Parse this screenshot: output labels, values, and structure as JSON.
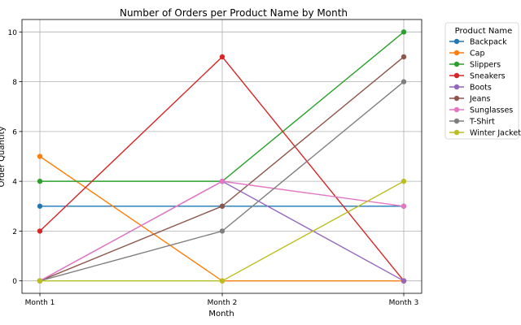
{
  "chart_data": {
    "type": "line",
    "title": "Number of Orders per Product Name by Month",
    "xlabel": "Month",
    "ylabel": "Order Quantity",
    "categories": [
      "Month 1",
      "Month 2",
      "Month 3"
    ],
    "ylim": [
      -0.5,
      10.5
    ],
    "yticks": [
      0,
      2,
      4,
      6,
      8,
      10
    ],
    "grid": true,
    "legend": {
      "title": "Product Name",
      "placement": "outside-right"
    },
    "series": [
      {
        "name": "Backpack",
        "color": "#1f77b4",
        "values": [
          3,
          3,
          3
        ]
      },
      {
        "name": "Cap",
        "color": "#ff7f0e",
        "values": [
          5,
          0,
          0
        ]
      },
      {
        "name": "Slippers",
        "color": "#2ca02c",
        "values": [
          4,
          4,
          10
        ]
      },
      {
        "name": "Sneakers",
        "color": "#d62728",
        "values": [
          2,
          9,
          0
        ]
      },
      {
        "name": "Boots",
        "color": "#9467bd",
        "values": [
          0,
          4,
          0
        ]
      },
      {
        "name": "Jeans",
        "color": "#8c564b",
        "values": [
          0,
          3,
          9
        ]
      },
      {
        "name": "Sunglasses",
        "color": "#e377c2",
        "values": [
          0,
          4,
          3
        ]
      },
      {
        "name": "T-Shirt",
        "color": "#7f7f7f",
        "values": [
          0,
          2,
          8
        ]
      },
      {
        "name": "Winter Jacket",
        "color": "#bcbd22",
        "values": [
          0,
          0,
          4
        ]
      }
    ]
  }
}
